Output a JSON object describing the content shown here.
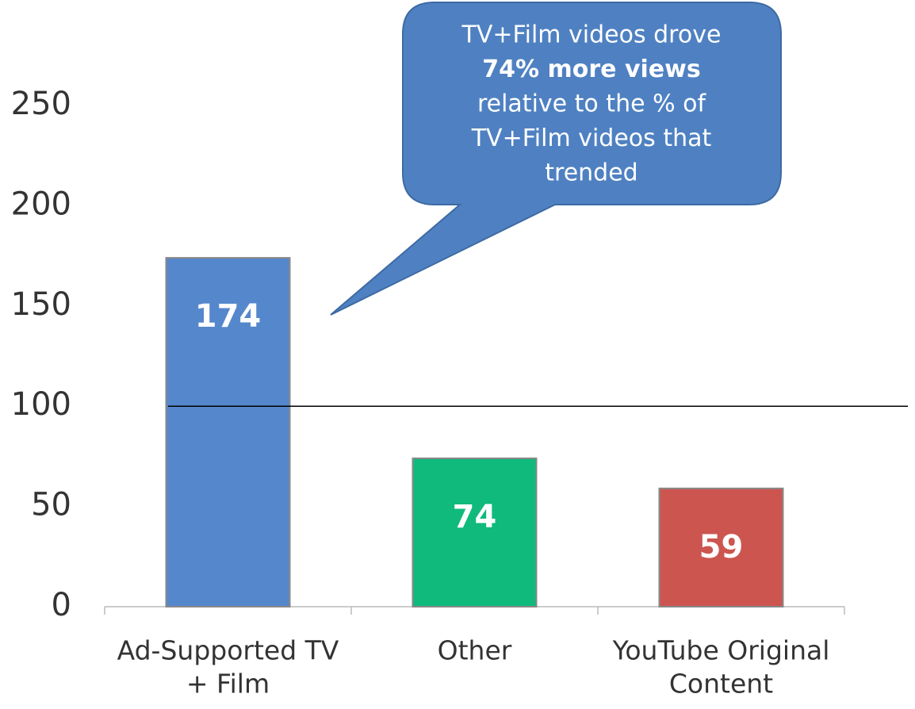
{
  "chart_data": {
    "type": "bar",
    "categories": [
      [
        "Ad-Supported TV",
        "+ Film"
      ],
      [
        "Other"
      ],
      [
        "YouTube Original",
        "Content"
      ]
    ],
    "values": [
      174,
      74,
      59
    ],
    "colors": [
      "#5587cc",
      "#0fba7c",
      "#cc5550"
    ],
    "ylim": [
      0,
      250
    ],
    "yticks": [
      0,
      50,
      100,
      150,
      200,
      250
    ],
    "reference_line": 100,
    "annotation": [
      "TV+Film videos drove",
      "74% more views",
      "relative to the % of",
      "TV+Film videos that",
      "trended"
    ]
  }
}
